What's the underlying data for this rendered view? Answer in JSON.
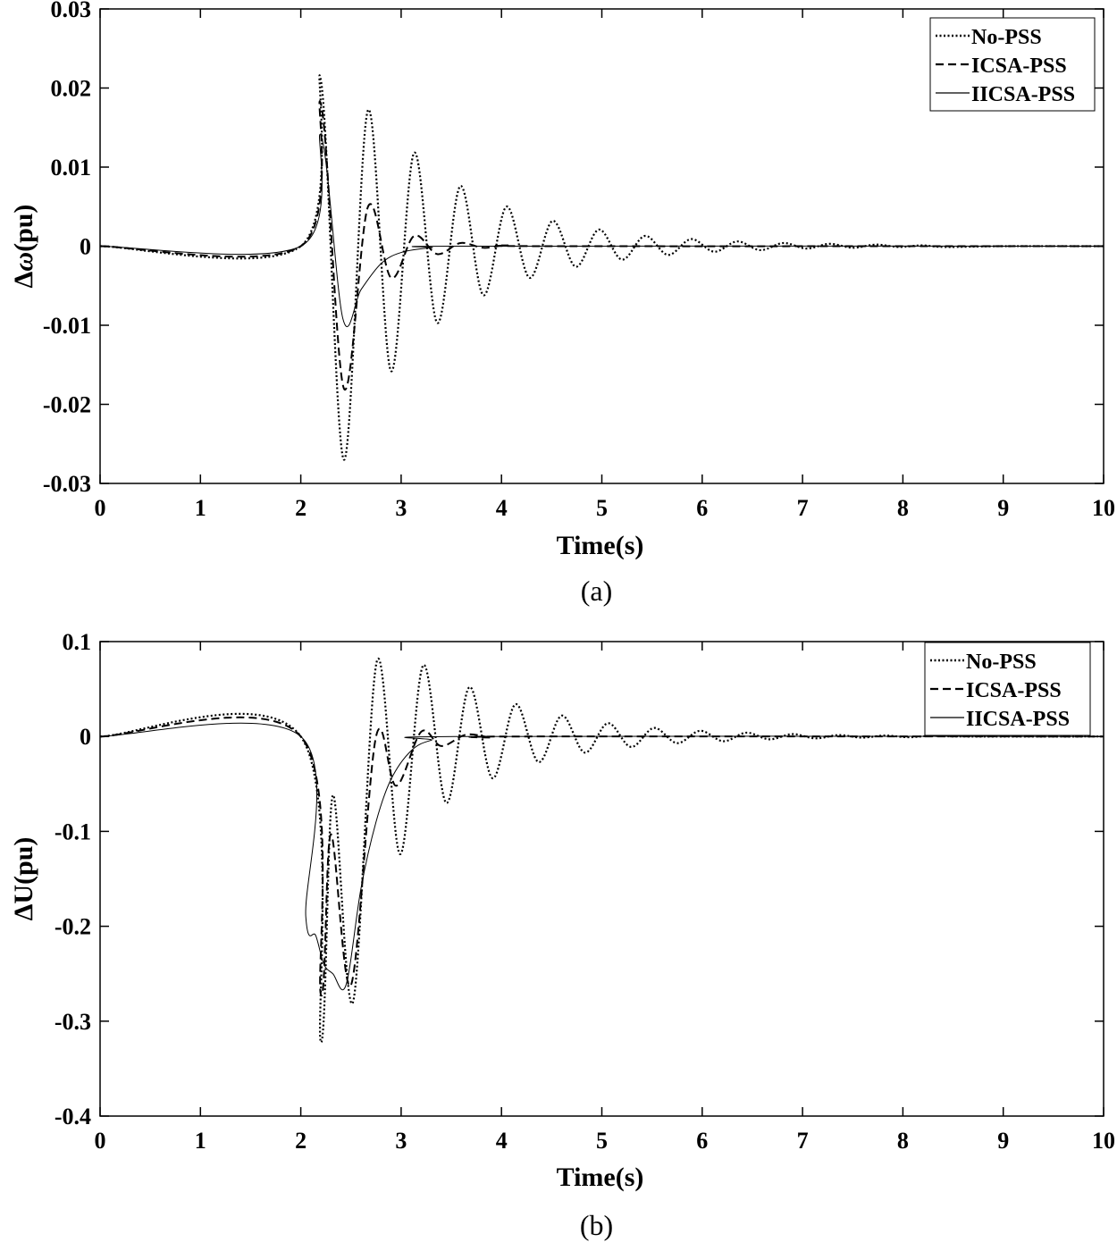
{
  "chart_data": [
    {
      "type": "line",
      "panel_label": "(a)",
      "xlabel": "Time(s)",
      "ylabel_symbol": "Δ",
      "ylabel_var": "ω",
      "ylabel_unit": "(pu)",
      "xlim": [
        0,
        10
      ],
      "ylim": [
        -0.03,
        0.03
      ],
      "xticks": [
        0,
        1,
        2,
        3,
        4,
        5,
        6,
        7,
        8,
        9,
        10
      ],
      "xtick_labels": [
        "0",
        "1",
        "2",
        "3",
        "4",
        "5",
        "6",
        "7",
        "8",
        "9",
        "10"
      ],
      "yticks": [
        -0.03,
        -0.02,
        -0.01,
        0,
        0.01,
        0.02,
        0.03
      ],
      "ytick_labels": [
        "-0.03",
        "-0.02",
        "-0.01",
        "0",
        "0.01",
        "0.02",
        "0.03"
      ],
      "grid": false,
      "legend_position": "top-right",
      "series": [
        {
          "name": "No-PSS",
          "style": "dotted",
          "color": "#000000",
          "points": [
            [
              0,
              0
            ],
            [
              2,
              0
            ],
            [
              2.2,
              0.021
            ],
            [
              2.43,
              -0.027
            ],
            [
              2.67,
              0.0172
            ],
            [
              2.9,
              -0.0158
            ],
            [
              3.13,
              0.0118
            ],
            [
              3.36,
              -0.0097
            ],
            [
              3.59,
              0.0076
            ],
            [
              3.82,
              -0.0062
            ],
            [
              4.05,
              0.005
            ],
            [
              4.28,
              -0.004
            ],
            [
              4.51,
              0.0032
            ],
            [
              4.74,
              -0.0026
            ],
            [
              4.97,
              0.0021
            ],
            [
              5.2,
              -0.0017
            ],
            [
              5.43,
              0.0013
            ],
            [
              5.66,
              -0.0011
            ],
            [
              5.89,
              0.0009
            ],
            [
              6.12,
              -0.0007
            ],
            [
              6.35,
              0.0006
            ],
            [
              6.58,
              -0.0005
            ],
            [
              6.81,
              0.0004
            ],
            [
              7.04,
              -0.0003
            ],
            [
              7.27,
              0.0003
            ],
            [
              7.5,
              -0.0002
            ],
            [
              7.73,
              0.0002
            ],
            [
              7.96,
              -0.0001
            ],
            [
              8.19,
              0.0001
            ],
            [
              8.42,
              -0.0001
            ],
            [
              9,
              0
            ],
            [
              10,
              0
            ]
          ]
        },
        {
          "name": "ICSA-PSS",
          "style": "dashed",
          "color": "#000000",
          "points": [
            [
              0,
              0
            ],
            [
              2,
              0
            ],
            [
              2.2,
              0.018
            ],
            [
              2.43,
              -0.018
            ],
            [
              2.67,
              0.005
            ],
            [
              2.9,
              -0.004
            ],
            [
              3.13,
              0.0013
            ],
            [
              3.36,
              -0.001
            ],
            [
              3.59,
              0.0004
            ],
            [
              3.82,
              -0.0002
            ],
            [
              4.05,
              0.0001
            ],
            [
              4.5,
              0
            ],
            [
              10,
              0
            ]
          ]
        },
        {
          "name": "IICSA-PSS",
          "style": "solid",
          "color": "#000000",
          "points": [
            [
              0,
              0
            ],
            [
              2,
              0
            ],
            [
              2.2,
              0.014
            ],
            [
              2.42,
              -0.0092
            ],
            [
              2.6,
              -0.0055
            ],
            [
              2.8,
              -0.0022
            ],
            [
              3.0,
              -0.0008
            ],
            [
              3.3,
              -0.0002
            ],
            [
              3.7,
              0
            ],
            [
              10,
              0
            ]
          ]
        }
      ]
    },
    {
      "type": "line",
      "panel_label": "(b)",
      "xlabel": "Time(s)",
      "ylabel_symbol": "Δ",
      "ylabel_var": "U",
      "ylabel_unit": "(pu)",
      "xlim": [
        0,
        10
      ],
      "ylim": [
        -0.4,
        0.1
      ],
      "xticks": [
        0,
        1,
        2,
        3,
        4,
        5,
        6,
        7,
        8,
        9,
        10
      ],
      "xtick_labels": [
        "0",
        "1",
        "2",
        "3",
        "4",
        "5",
        "6",
        "7",
        "8",
        "9",
        "10"
      ],
      "yticks": [
        -0.4,
        -0.3,
        -0.2,
        -0.1,
        0,
        0.1
      ],
      "ytick_labels": [
        "-0.4",
        "-0.3",
        "-0.2",
        "-0.1",
        "0",
        "0.1"
      ],
      "grid": false,
      "legend_position": "top-right",
      "series": [
        {
          "name": "No-PSS",
          "style": "dotted",
          "color": "#000000",
          "points": [
            [
              0,
              0
            ],
            [
              2,
              0
            ],
            [
              2.2,
              -0.322
            ],
            [
              2.32,
              -0.062
            ],
            [
              2.52,
              -0.28
            ],
            [
              2.76,
              0.08
            ],
            [
              2.99,
              -0.124
            ],
            [
              3.22,
              0.075
            ],
            [
              3.45,
              -0.07
            ],
            [
              3.68,
              0.052
            ],
            [
              3.91,
              -0.044
            ],
            [
              4.14,
              0.034
            ],
            [
              4.37,
              -0.027
            ],
            [
              4.6,
              0.022
            ],
            [
              4.83,
              -0.017
            ],
            [
              5.06,
              0.014
            ],
            [
              5.29,
              -0.011
            ],
            [
              5.52,
              0.009
            ],
            [
              5.75,
              -0.007
            ],
            [
              5.98,
              0.006
            ],
            [
              6.21,
              -0.005
            ],
            [
              6.44,
              0.004
            ],
            [
              6.67,
              -0.003
            ],
            [
              6.9,
              0.0025
            ],
            [
              7.13,
              -0.002
            ],
            [
              7.36,
              0.0015
            ],
            [
              7.59,
              -0.0012
            ],
            [
              7.82,
              0.001
            ],
            [
              8.05,
              -0.0008
            ],
            [
              8.28,
              0.0006
            ],
            [
              8.6,
              0
            ],
            [
              10,
              0
            ]
          ]
        },
        {
          "name": "ICSA-PSS",
          "style": "dashed",
          "color": "#000000",
          "points": [
            [
              0,
              0
            ],
            [
              2,
              0
            ],
            [
              2.2,
              -0.272
            ],
            [
              2.3,
              -0.103
            ],
            [
              2.5,
              -0.262
            ],
            [
              2.75,
              0
            ],
            [
              2.95,
              -0.052
            ],
            [
              3.2,
              0.005
            ],
            [
              3.4,
              -0.01
            ],
            [
              3.65,
              0.002
            ],
            [
              3.9,
              -0.001
            ],
            [
              4.2,
              0
            ],
            [
              10,
              0
            ]
          ]
        },
        {
          "name": "IICSA-PSS",
          "style": "solid",
          "color": "#000000",
          "points": [
            [
              0,
              0
            ],
            [
              2,
              0
            ],
            [
              2.05,
              -0.19
            ],
            [
              2.15,
              -0.21
            ],
            [
              2.23,
              -0.24
            ],
            [
              2.32,
              -0.25
            ],
            [
              2.45,
              -0.262
            ],
            [
              2.6,
              -0.16
            ],
            [
              2.75,
              -0.09
            ],
            [
              2.9,
              -0.045
            ],
            [
              3.1,
              -0.015
            ],
            [
              3.3,
              -0.004
            ],
            [
              3.6,
              0
            ],
            [
              10,
              0
            ]
          ]
        }
      ]
    }
  ]
}
